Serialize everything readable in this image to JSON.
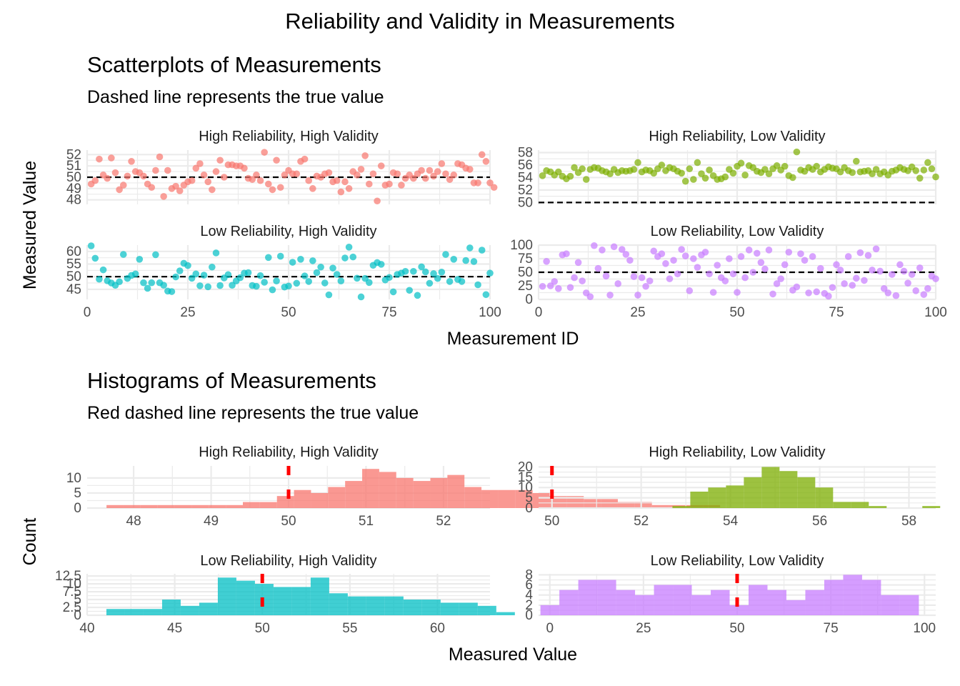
{
  "figure": {
    "title": "Reliability and Validity in Measurements",
    "scatter_section": {
      "title": "Scatterplots of Measurements",
      "subtitle": "Dashed line represents the true value",
      "xlabel": "Measurement ID",
      "ylabel": "Measured Value"
    },
    "hist_section": {
      "title": "Histograms of Measurements",
      "subtitle": "Red dashed line represents the true value",
      "xlabel": "Measured Value",
      "ylabel": "Count"
    }
  },
  "colors": {
    "hh": "#F8766D",
    "hl": "#7CAE00",
    "lh": "#00BFC4",
    "ll": "#C77CFF",
    "true_line_scatter": "#000000",
    "true_line_hist": "#FF0000",
    "grid": "#EBEBEB"
  },
  "chart_data": [
    {
      "type": "scatter",
      "title": "High Reliability, High Validity",
      "color": "#F8766D",
      "true_value": 50,
      "xlim": [
        0,
        100
      ],
      "ylim": [
        47.6,
        52.4
      ],
      "xticks": [
        0,
        25,
        50,
        75,
        100
      ],
      "yticks": [
        48,
        49,
        50,
        51,
        52
      ],
      "y": [
        49.4,
        49.7,
        51.6,
        50.2,
        49.9,
        51.7,
        50.4,
        48.9,
        49.3,
        50.1,
        51.4,
        50.5,
        50.4,
        50.1,
        49.4,
        49.1,
        50.6,
        51.8,
        48.3,
        50.6,
        49.0,
        49.2,
        48.8,
        49.3,
        49.6,
        49.7,
        50.8,
        51.2,
        50.2,
        49.6,
        48.9,
        50.5,
        51.5,
        50.0,
        51.1,
        51.1,
        51.0,
        51.0,
        50.8,
        49.9,
        49.8,
        50.2,
        49.7,
        52.2,
        49.4,
        48.9,
        51.5,
        49.1,
        50.2,
        50.6,
        50.3,
        50.3,
        51.4,
        51.6,
        49.7,
        49.0,
        50.1,
        50.0,
        50.3,
        50.4,
        49.6,
        49.7,
        48.7,
        49.6,
        49.0,
        50.5,
        50.2,
        50.7,
        51.9,
        49.4,
        50.3,
        47.9,
        51.0,
        49.3,
        49.4,
        50.4,
        50.3,
        49.3,
        49.9,
        50.2,
        49.9,
        50.3,
        50.6,
        49.9,
        50.6,
        50.1,
        50.5,
        51.2,
        50.3,
        49.8,
        50.2,
        51.2,
        51.1,
        50.8,
        50.7,
        49.5,
        49.5,
        52.0,
        51.4,
        49.5,
        49.1
      ]
    },
    {
      "type": "scatter",
      "title": "High Reliability, Low Validity",
      "color": "#7CAE00",
      "true_value": 50,
      "xlim": [
        0,
        100
      ],
      "ylim": [
        49.7,
        58.4
      ],
      "xticks": [
        0,
        25,
        50,
        75,
        100
      ],
      "yticks": [
        50,
        52,
        54,
        56,
        58
      ],
      "y": [
        54.3,
        55.1,
        54.9,
        54.4,
        54.9,
        54.2,
        53.8,
        54.2,
        55.6,
        54.8,
        55.4,
        53.7,
        55.3,
        55.6,
        55.5,
        55.1,
        54.9,
        54.6,
        55.3,
        54.8,
        55.1,
        55.0,
        55.1,
        55.3,
        56.4,
        54.9,
        55.2,
        55.1,
        54.7,
        55.4,
        56.0,
        55.1,
        55.6,
        55.4,
        55.0,
        54.7,
        53.4,
        55.4,
        53.7,
        56.4,
        54.6,
        53.9,
        55.2,
        54.3,
        53.7,
        53.8,
        54.1,
        55.3,
        54.7,
        55.8,
        56.3,
        54.4,
        55.9,
        55.6,
        55.0,
        54.8,
        55.3,
        54.6,
        55.4,
        55.9,
        55.2,
        55.8,
        54.3,
        54.0,
        58.1,
        55.2,
        55.0,
        55.6,
        55.3,
        55.8,
        54.9,
        55.3,
        55.7,
        55.5,
        55.4,
        54.9,
        55.6,
        55.1,
        54.8,
        56.6,
        54.9,
        55.0,
        55.1,
        54.6,
        55.3,
        54.6,
        54.9,
        54.4,
        55.0,
        55.2,
        55.6,
        55.3,
        55.1,
        55.7,
        55.1,
        53.9,
        55.2,
        56.4,
        55.4,
        54.1
      ]
    },
    {
      "type": "scatter",
      "title": "Low Reliability, High Validity",
      "color": "#00BFC4",
      "true_value": 50,
      "xlim": [
        0,
        100
      ],
      "ylim": [
        41.0,
        62.5
      ],
      "xticks": [
        0,
        25,
        50,
        75,
        100
      ],
      "yticks": [
        45,
        50,
        55,
        60
      ],
      "y": [
        62.2,
        57.3,
        49.0,
        52.7,
        48.4,
        47.5,
        46.6,
        48.0,
        58.8,
        49.3,
        50.5,
        51.1,
        56.9,
        47.6,
        45.4,
        47.6,
        58.7,
        47.6,
        46.6,
        44.3,
        44.1,
        49.9,
        52.3,
        55.3,
        54.4,
        49.4,
        51.1,
        46.4,
        50.6,
        46.0,
        53.8,
        59.4,
        46.5,
        49.5,
        50.8,
        46.6,
        48.3,
        49.6,
        51.4,
        51.6,
        46.5,
        46.2,
        50.4,
        47.8,
        57.6,
        44.8,
        48.3,
        58.1,
        45.9,
        46.3,
        55.7,
        47.4,
        56.9,
        50.3,
        48.1,
        56.3,
        51.6,
        53.8,
        47.5,
        42.8,
        53.4,
        50.9,
        48.3,
        57.4,
        61.7,
        57.8,
        49.4,
        42.0,
        49.3,
        47.7,
        54.5,
        55.6,
        54.9,
        48.7,
        49.7,
        44.0,
        50.9,
        51.4,
        52.1,
        44.6,
        52.1,
        42.6,
        53.9,
        51.9,
        47.4,
        51.2,
        49.3,
        51.8,
        58.8,
        48.1,
        56.9,
        48.9,
        48.1,
        56.4,
        61.4,
        56.0,
        46.8,
        60.5,
        42.9,
        51.4
      ]
    },
    {
      "type": "scatter",
      "title": "Low Reliability, Low Validity",
      "color": "#C77CFF",
      "true_value": 50,
      "xlim": [
        0,
        100
      ],
      "ylim": [
        0,
        100
      ],
      "xticks": [
        0,
        25,
        50,
        75,
        100
      ],
      "yticks": [
        0,
        25,
        50,
        75,
        100
      ],
      "y": [
        24.0,
        70.0,
        25.0,
        33.0,
        20.0,
        82.0,
        84.0,
        22.0,
        40.0,
        68.0,
        34.0,
        12.0,
        5.0,
        99.0,
        57.0,
        91.0,
        43.0,
        8.0,
        97.0,
        29.0,
        92.0,
        83.0,
        72.0,
        42.0,
        8.0,
        40.0,
        24.0,
        34.0,
        89.0,
        79.0,
        84.0,
        66.0,
        38.0,
        72.0,
        47.0,
        92.0,
        80.0,
        16.0,
        75.0,
        59.0,
        82.0,
        87.0,
        47.0,
        13.0,
        63.0,
        40.0,
        34.0,
        75.0,
        47.0,
        13.0,
        79.0,
        40.0,
        91.0,
        50.0,
        85.0,
        68.0,
        56.0,
        91.0,
        10.0,
        29.0,
        38.0,
        64.0,
        87.0,
        17.0,
        23.0,
        84.0,
        72.0,
        12.0,
        79.0,
        14.0,
        57.0,
        11.0,
        6.0,
        22.0,
        64.0,
        54.0,
        29.0,
        79.0,
        26.0,
        39.0,
        86.0,
        35.0,
        81.0,
        54.0,
        93.0,
        52.0,
        20.0,
        12.0,
        46.0,
        7.0,
        64.0,
        52.0,
        30.0,
        46.0,
        16.0,
        58.0,
        9.0,
        20.0,
        43.0,
        38.0
      ]
    },
    {
      "type": "bar",
      "subtype": "histogram",
      "title": "High Reliability, High Validity",
      "color": "#F8766D",
      "true_value": 50,
      "xlim": [
        47.4,
        52.6
      ],
      "ylim": [
        0,
        14
      ],
      "xticks": [
        48,
        49,
        50,
        51,
        52
      ],
      "yticks": [
        0,
        5,
        10
      ],
      "bins_start": 47.65,
      "bin_width": 0.22,
      "counts": [
        1,
        1,
        1,
        1,
        1,
        1,
        1,
        1,
        2,
        2,
        4,
        6,
        5,
        7,
        9,
        13,
        12,
        10,
        9,
        10,
        11,
        7,
        6,
        6,
        6,
        5,
        4,
        4,
        3,
        3,
        2,
        2,
        1,
        1,
        1,
        1
      ]
    },
    {
      "type": "bar",
      "subtype": "histogram",
      "title": "High Reliability, Low Validity",
      "color": "#7CAE00",
      "true_value": 50,
      "xlim": [
        49.7,
        58.6
      ],
      "ylim": [
        0,
        20.5
      ],
      "xticks": [
        50,
        52,
        54,
        56,
        58
      ],
      "yticks": [
        0,
        5,
        10,
        15,
        20
      ],
      "bins_start": 52.7,
      "bin_width": 0.4,
      "counts": [
        1,
        8,
        10,
        11,
        15,
        20,
        18,
        15,
        10,
        3,
        3,
        1,
        0,
        0,
        1
      ]
    },
    {
      "type": "bar",
      "subtype": "histogram",
      "title": "Low Reliability, High Validity",
      "color": "#00BFC4",
      "true_value": 50,
      "xlim": [
        40,
        63
      ],
      "ylim": [
        0,
        13.2
      ],
      "xticks": [
        40,
        45,
        50,
        55,
        60
      ],
      "yticks": [
        0,
        2.5,
        5,
        7.5,
        10,
        12.5
      ],
      "bins_start": 41.1,
      "bin_width": 1.06,
      "counts": [
        2,
        2,
        2,
        5,
        3,
        4,
        12,
        11,
        10,
        9,
        9,
        12,
        7,
        6,
        6,
        6,
        5,
        5,
        4,
        4,
        3,
        1
      ]
    },
    {
      "type": "bar",
      "subtype": "histogram",
      "title": "Low Reliability, Low Validity",
      "color": "#C77CFF",
      "true_value": 50,
      "xlim": [
        -3,
        103
      ],
      "ylim": [
        0,
        8.2
      ],
      "xticks": [
        0,
        25,
        50,
        75,
        100
      ],
      "yticks": [
        0,
        2,
        4,
        6,
        8
      ],
      "bins_start": -2.5,
      "bin_width": 5.05,
      "counts": [
        2,
        5,
        7,
        7,
        5,
        4,
        6,
        6,
        4,
        5,
        2,
        6,
        5,
        3,
        5,
        7,
        8,
        7,
        4,
        4
      ]
    }
  ]
}
